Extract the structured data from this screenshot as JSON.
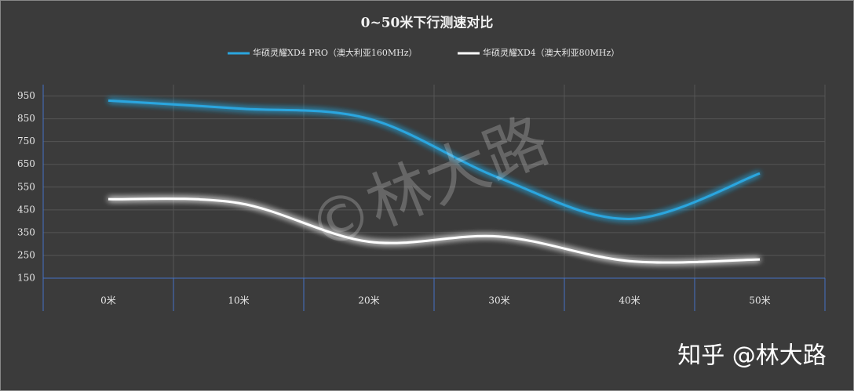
{
  "chart_data": {
    "type": "line",
    "title": "0~50米下行测速对比",
    "categories": [
      "0米",
      "10米",
      "20米",
      "30米",
      "40米",
      "50米"
    ],
    "series": [
      {
        "name": "华硕灵耀XD4 PRO（澳大利亚160MHz）",
        "color": "#2ba6df",
        "values": [
          930,
          895,
          850,
          590,
          410,
          610
        ]
      },
      {
        "name": "华硕灵耀XD4（澳大利亚80MHz）",
        "color": "#ffffff",
        "values": [
          497,
          480,
          310,
          333,
          225,
          232
        ]
      }
    ],
    "ylim": [
      150,
      1000
    ],
    "yticks": [
      150,
      250,
      350,
      450,
      550,
      650,
      750,
      850,
      950
    ],
    "grid": true,
    "smooth": true,
    "watermark": "©林大路",
    "credit": "知乎 @林大路"
  }
}
